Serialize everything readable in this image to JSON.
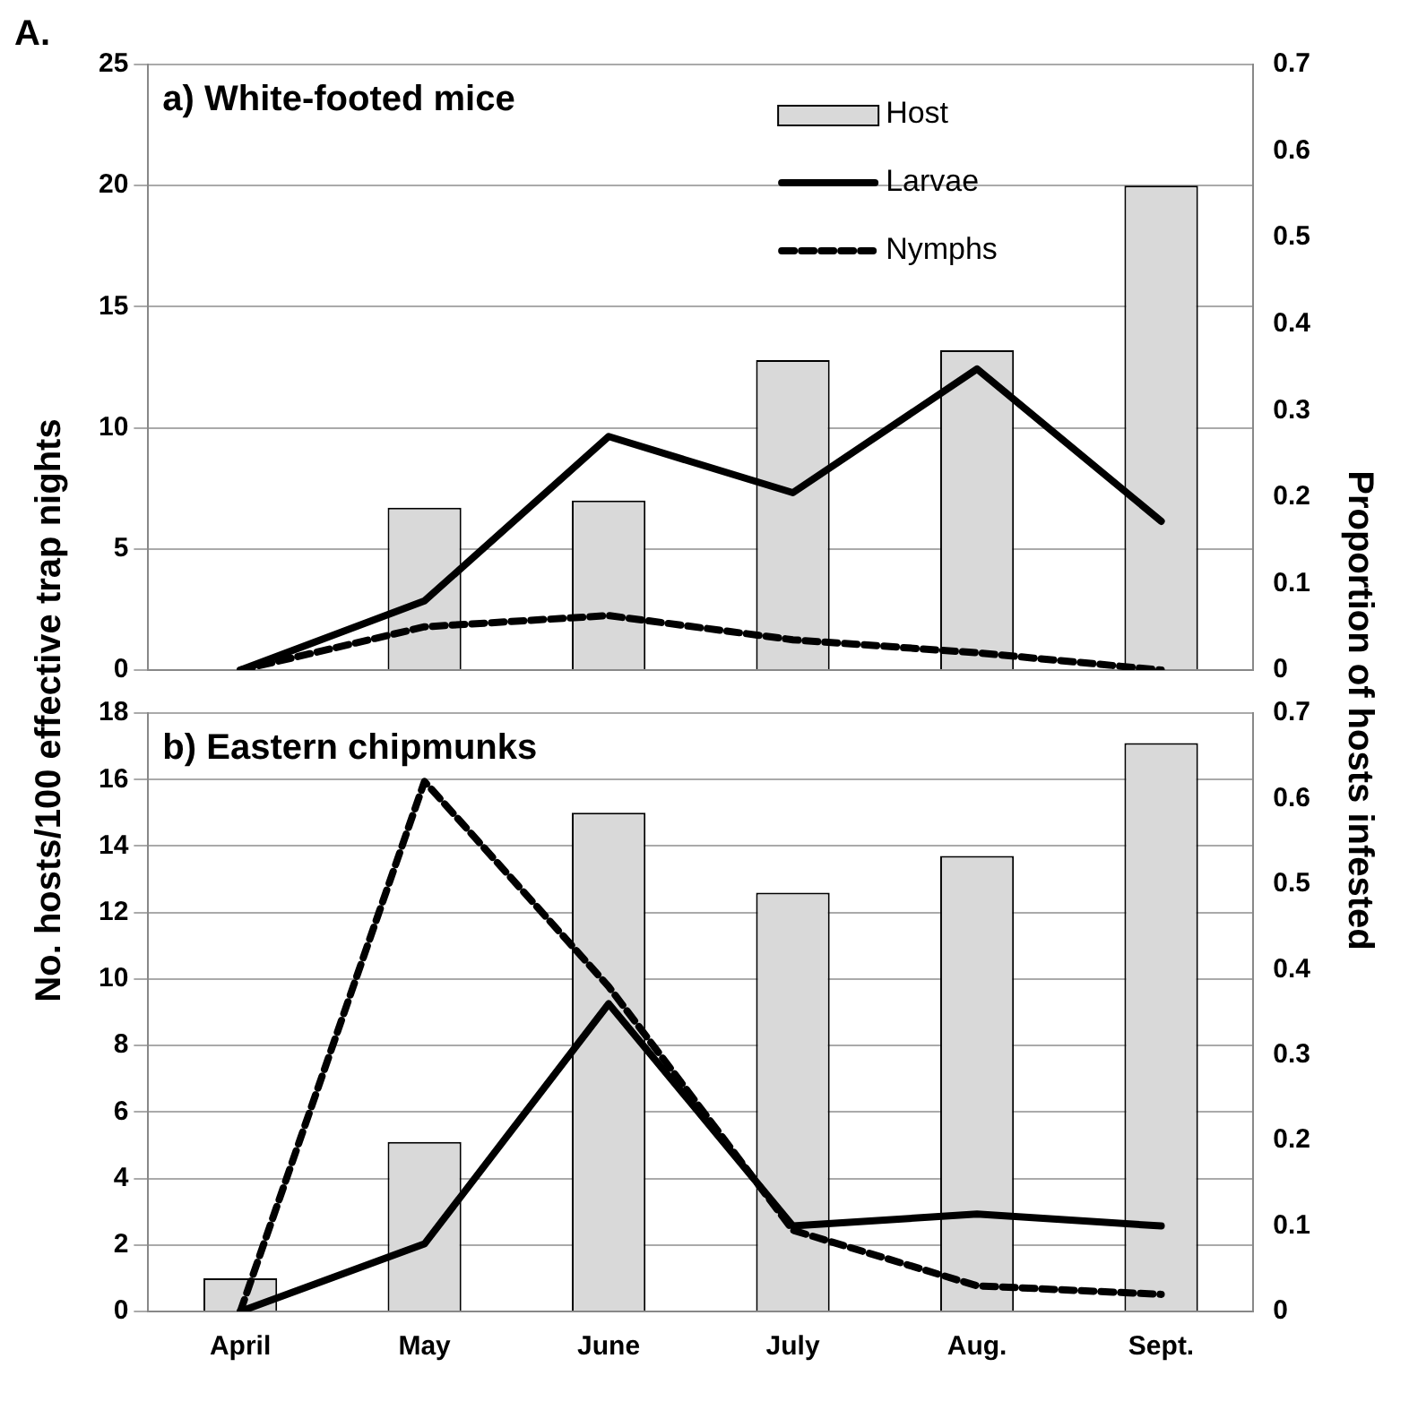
{
  "chart_data": [
    {
      "type": "bar",
      "title": "a) White-footed mice",
      "ylabel": "No. hosts/100 effective trap nights",
      "y2label": "Proportion of hosts infested",
      "annotations": [
        "A."
      ],
      "categories": [
        null,
        null,
        null,
        null,
        null,
        null
      ],
      "series": [
        {
          "name": "Host",
          "type": "bar",
          "color": "#d9d9d9",
          "values": [
            0,
            6.7,
            7.0,
            12.8,
            13.2,
            20.0
          ]
        },
        {
          "name": "Larvae",
          "type": "line",
          "axis": "y2",
          "color": "#000000",
          "line_style": "solid",
          "values": [
            0,
            0.08,
            0.27,
            0.205,
            0.348,
            0.172
          ]
        },
        {
          "name": "Nymphs",
          "type": "line",
          "axis": "y2",
          "color": "#000000",
          "line_style": "dashed",
          "values": [
            0,
            0.05,
            0.063,
            0.035,
            0.02,
            0
          ]
        }
      ],
      "ylim": [
        0,
        25
      ],
      "yticks": [
        0,
        5,
        10,
        15,
        20,
        25
      ],
      "y2lim": [
        0,
        0.7
      ],
      "y2ticks": [
        0,
        0.1,
        0.2,
        0.3,
        0.4,
        0.5,
        0.6,
        0.7
      ],
      "grid": "y",
      "legend": "top",
      "marker": "none",
      "tick_labels": "y"
    },
    {
      "type": "bar",
      "title": "b) Eastern chipmunks",
      "categories": [
        "April",
        "May",
        "June",
        "July",
        "Aug.",
        "Sept."
      ],
      "series": [
        {
          "type": "bar",
          "color": "#d9d9d9",
          "values": [
            1.0,
            5.1,
            15.0,
            12.6,
            13.7,
            17.1
          ]
        },
        {
          "type": "line",
          "axis": "y2",
          "color": "#000000",
          "line_style": "solid",
          "values": [
            0,
            0.079,
            0.36,
            0.1,
            0.114,
            0.1
          ]
        },
        {
          "type": "line",
          "axis": "y2",
          "color": "#000000",
          "line_style": "dashed",
          "values": [
            0,
            0.62,
            0.38,
            0.095,
            0.03,
            0.02
          ]
        }
      ],
      "ylim": [
        0,
        18
      ],
      "yticks": [
        0,
        2,
        4,
        6,
        8,
        10,
        12,
        14,
        16,
        18
      ],
      "y2lim": [
        0,
        0.7
      ],
      "y2ticks": [
        0,
        0.1,
        0.2,
        0.3,
        0.4,
        0.5,
        0.6,
        0.7
      ],
      "grid": "y",
      "legend": false,
      "marker": "none"
    }
  ]
}
